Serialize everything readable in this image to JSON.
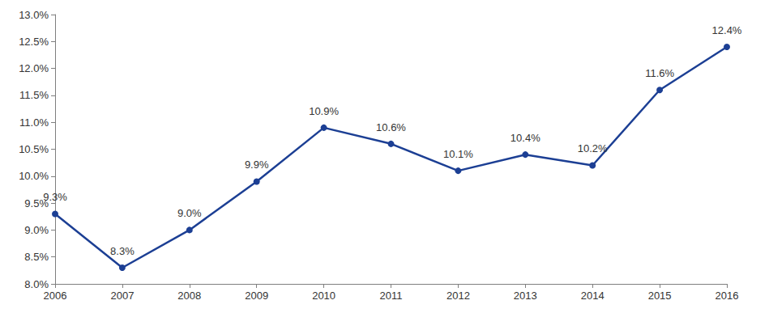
{
  "chart_data": {
    "type": "line",
    "categories": [
      "2006",
      "2007",
      "2008",
      "2009",
      "2010",
      "2011",
      "2012",
      "2013",
      "2014",
      "2015",
      "2016"
    ],
    "values": [
      9.3,
      8.3,
      9.0,
      9.9,
      10.9,
      10.6,
      10.1,
      10.4,
      10.2,
      11.6,
      12.4
    ],
    "value_labels": [
      "9.3%",
      "8.3%",
      "9.0%",
      "9.9%",
      "10.9%",
      "10.6%",
      "10.1%",
      "10.4%",
      "10.2%",
      "11.6%",
      "12.4%"
    ],
    "color": "#1c3f94",
    "marker": "circle",
    "ylim": [
      8.0,
      13.0
    ],
    "yticks": [
      {
        "value": 8.0,
        "label": "8.0%"
      },
      {
        "value": 8.5,
        "label": "8.5%"
      },
      {
        "value": 9.0,
        "label": "9.0%"
      },
      {
        "value": 9.5,
        "label": "9.5%"
      },
      {
        "value": 10.0,
        "label": "10.0%"
      },
      {
        "value": 10.5,
        "label": "10.5%"
      },
      {
        "value": 11.0,
        "label": "11.0%"
      },
      {
        "value": 11.5,
        "label": "11.5%"
      },
      {
        "value": 12.0,
        "label": "12.0%"
      },
      {
        "value": 12.5,
        "label": "12.5%"
      },
      {
        "value": 13.0,
        "label": "13.0%"
      }
    ],
    "grid": false,
    "data_labels": true
  }
}
